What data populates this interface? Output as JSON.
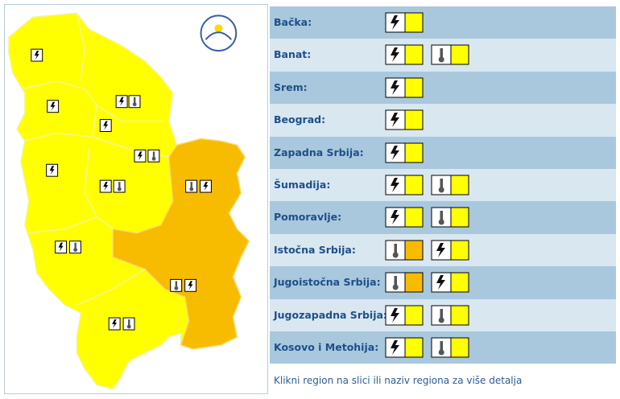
{
  "regions": [
    {
      "name": "Bačka:",
      "warnings": [
        {
          "type": "storm",
          "color": "#ffff00"
        }
      ]
    },
    {
      "name": "Banat:",
      "warnings": [
        {
          "type": "storm",
          "color": "#ffff00"
        },
        {
          "type": "heat",
          "color": "#ffff00"
        }
      ]
    },
    {
      "name": "Srem:",
      "warnings": [
        {
          "type": "storm",
          "color": "#ffff00"
        }
      ]
    },
    {
      "name": "Beograd:",
      "warnings": [
        {
          "type": "storm",
          "color": "#ffff00"
        }
      ]
    },
    {
      "name": "Zapadna Srbija:",
      "warnings": [
        {
          "type": "storm",
          "color": "#ffff00"
        }
      ]
    },
    {
      "name": "Šumadija:",
      "warnings": [
        {
          "type": "storm",
          "color": "#ffff00"
        },
        {
          "type": "heat",
          "color": "#ffff00"
        }
      ]
    },
    {
      "name": "Pomoravlje:",
      "warnings": [
        {
          "type": "storm",
          "color": "#ffff00"
        },
        {
          "type": "heat",
          "color": "#ffff00"
        }
      ]
    },
    {
      "name": "Istočna Srbija:",
      "warnings": [
        {
          "type": "heat",
          "color": "#f7bb00"
        },
        {
          "type": "storm",
          "color": "#ffff00"
        }
      ]
    },
    {
      "name": "Jugoistočna Srbija:",
      "warnings": [
        {
          "type": "heat",
          "color": "#f7bb00"
        },
        {
          "type": "storm",
          "color": "#ffff00"
        }
      ]
    },
    {
      "name": "Jugozapadna Srbija:",
      "warnings": [
        {
          "type": "storm",
          "color": "#ffff00"
        },
        {
          "type": "heat",
          "color": "#ffff00"
        }
      ]
    },
    {
      "name": "Kosovo i Metohija:",
      "warnings": [
        {
          "type": "storm",
          "color": "#ffff00"
        },
        {
          "type": "heat",
          "color": "#ffff00"
        }
      ]
    }
  ],
  "footer": "Klikni region na slici ili naziv regiona za više detalja"
}
